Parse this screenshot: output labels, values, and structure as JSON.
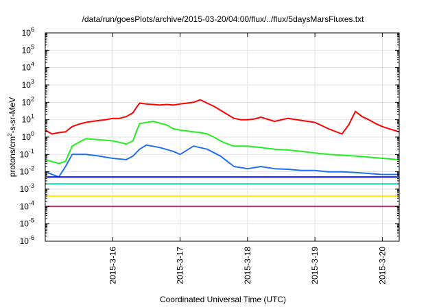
{
  "chart_data": {
    "type": "line",
    "title": "/data/run/goesPlots/archive/2015-03-20/04:00/flux/../flux/5daysMarsFluxes.txt",
    "xlabel": "Coordinated Universal Time (UTC)",
    "ylabel": "protons/cm2-s-sr-MeV",
    "ylabel_parts": {
      "pre": "protons/cm",
      "sup": "2",
      "post": "-s-sr-MeV"
    },
    "y_scale": "log",
    "ylim": [
      1e-06,
      1000000.0
    ],
    "xlim_days": [
      15.0,
      20.25
    ],
    "x_ticks": [
      {
        "day": 16,
        "label": "2015-3-16"
      },
      {
        "day": 17,
        "label": "2015-3-17"
      },
      {
        "day": 18,
        "label": "2015-3-18"
      },
      {
        "day": 19,
        "label": "2015-3-19"
      },
      {
        "day": 20,
        "label": "2015-3-20"
      }
    ],
    "y_ticks": [
      {
        "exp": -6,
        "base": "10",
        "sup": "-6"
      },
      {
        "exp": -5,
        "base": "10",
        "sup": "-5"
      },
      {
        "exp": -4,
        "base": "10",
        "sup": "-4"
      },
      {
        "exp": -3,
        "base": "10",
        "sup": "-3"
      },
      {
        "exp": -2,
        "base": "10",
        "sup": "-2"
      },
      {
        "exp": -1,
        "base": "10",
        "sup": "-1"
      },
      {
        "exp": 0,
        "base": "10",
        "sup": "0"
      },
      {
        "exp": 1,
        "base": "10",
        "sup": "1"
      },
      {
        "exp": 2,
        "base": "10",
        "sup": "2"
      },
      {
        "exp": 3,
        "base": "10",
        "sup": "3"
      },
      {
        "exp": 4,
        "base": "10",
        "sup": "4"
      },
      {
        "exp": 5,
        "base": "10",
        "sup": "5"
      },
      {
        "exp": 6,
        "base": "10",
        "sup": "6"
      }
    ],
    "grid": true,
    "series": [
      {
        "color": "#ff0000",
        "x": [
          15.0,
          15.1,
          15.2,
          15.3,
          15.4,
          15.5,
          15.6,
          15.7,
          15.8,
          15.9,
          16.0,
          16.1,
          16.2,
          16.3,
          16.35,
          16.4,
          16.5,
          16.6,
          16.7,
          16.8,
          16.9,
          17.0,
          17.1,
          17.2,
          17.3,
          17.4,
          17.5,
          17.6,
          17.7,
          17.8,
          17.9,
          18.0,
          18.1,
          18.2,
          18.4,
          18.6,
          18.8,
          19.0,
          19.2,
          19.4,
          19.5,
          19.6,
          19.7,
          19.8,
          19.9,
          20.0,
          20.1,
          20.25
        ],
        "y": [
          2.5,
          1.5,
          1.8,
          2.0,
          4.0,
          5.5,
          7.0,
          8.0,
          9.0,
          10.0,
          12.0,
          12.0,
          15.0,
          25.0,
          50.0,
          90.0,
          80.0,
          75.0,
          70.0,
          75.0,
          70.0,
          80.0,
          90.0,
          100.0,
          140.0,
          90.0,
          60.0,
          35.0,
          20.0,
          12.0,
          10.0,
          10.0,
          11.0,
          14.0,
          8.0,
          12.0,
          9.0,
          7.0,
          3.0,
          1.5,
          5.0,
          30.0,
          15.0,
          10.0,
          6.0,
          4.0,
          3.0,
          2.0
        ]
      },
      {
        "color": "#22ee22",
        "x": [
          15.0,
          15.2,
          15.3,
          15.4,
          15.5,
          15.6,
          15.8,
          16.0,
          16.1,
          16.2,
          16.3,
          16.35,
          16.4,
          16.6,
          16.8,
          16.9,
          17.0,
          17.2,
          17.3,
          17.4,
          17.5,
          17.6,
          17.7,
          17.8,
          18.0,
          18.2,
          18.4,
          18.6,
          18.8,
          19.0,
          19.2,
          19.4,
          19.6,
          19.8,
          20.0,
          20.25
        ],
        "y": [
          0.05,
          0.03,
          0.04,
          0.3,
          0.5,
          0.8,
          0.7,
          0.6,
          0.5,
          0.4,
          0.6,
          2.0,
          6.0,
          8.0,
          5.0,
          3.0,
          2.5,
          2.0,
          1.8,
          1.5,
          1.0,
          0.6,
          0.4,
          0.3,
          0.3,
          0.25,
          0.2,
          0.18,
          0.15,
          0.12,
          0.1,
          0.09,
          0.08,
          0.07,
          0.06,
          0.05
        ]
      },
      {
        "color": "#1f6ff0",
        "x": [
          15.0,
          15.2,
          15.3,
          15.4,
          15.6,
          15.8,
          16.0,
          16.2,
          16.3,
          16.4,
          16.5,
          16.7,
          16.9,
          17.0,
          17.2,
          17.4,
          17.6,
          17.7,
          17.8,
          18.0,
          18.2,
          18.4,
          18.6,
          18.8,
          19.0,
          19.2,
          19.4,
          19.6,
          19.8,
          20.0,
          20.25
        ],
        "y": [
          0.01,
          0.005,
          0.02,
          0.1,
          0.1,
          0.08,
          0.06,
          0.05,
          0.08,
          0.2,
          0.35,
          0.25,
          0.15,
          0.1,
          0.3,
          0.2,
          0.08,
          0.04,
          0.02,
          0.015,
          0.02,
          0.015,
          0.014,
          0.012,
          0.012,
          0.01,
          0.01,
          0.009,
          0.008,
          0.007,
          0.007
        ]
      },
      {
        "color": "#0000ee",
        "x": [
          15.0,
          16.0,
          17.0,
          18.0,
          19.0,
          20.0,
          20.25
        ],
        "y": [
          0.005,
          0.005,
          0.005,
          0.005,
          0.005,
          0.005,
          0.005
        ]
      },
      {
        "color": "#11ccaa",
        "x": [
          15.0,
          16.0,
          17.0,
          18.0,
          19.0,
          20.0,
          20.25
        ],
        "y": [
          0.002,
          0.002,
          0.002,
          0.002,
          0.002,
          0.002,
          0.002
        ]
      },
      {
        "color": "#ffee00",
        "x": [
          15.0,
          16.0,
          17.0,
          18.0,
          19.0,
          20.0,
          20.25
        ],
        "y": [
          0.0004,
          0.0004,
          0.0004,
          0.0004,
          0.0004,
          0.0004,
          0.0004
        ]
      },
      {
        "color": "#aa3377",
        "x": [
          15.0,
          16.0,
          17.0,
          18.0,
          19.0,
          20.0,
          20.25
        ],
        "y": [
          0.0001,
          0.0001,
          0.0001,
          0.0001,
          0.0001,
          0.0001,
          0.0001
        ]
      }
    ]
  }
}
